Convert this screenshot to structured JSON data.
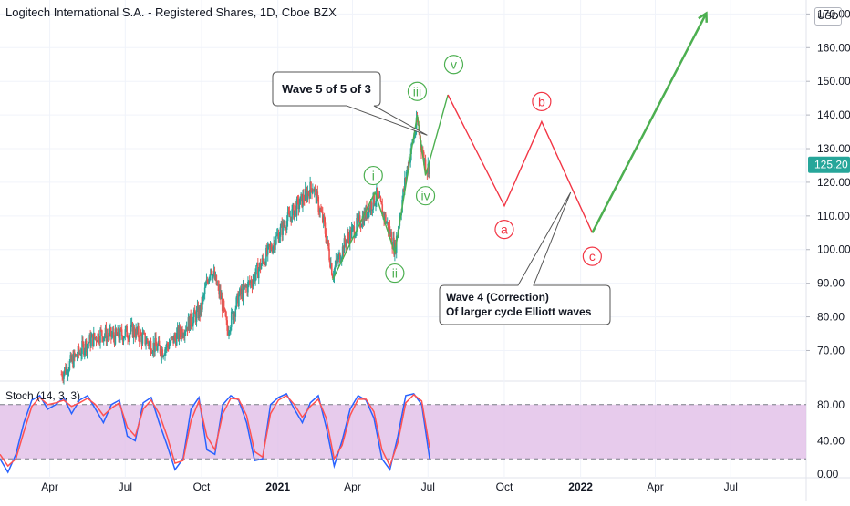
{
  "header": {
    "title": "Logitech International S.A. - Registered Shares, 1D, Cboe BZX",
    "currency": "USD"
  },
  "colors": {
    "up": "#26a69a",
    "down": "#ef5350",
    "wave_green": "#4caf50",
    "wave_red": "#f23645",
    "price_tag": "#26a69a",
    "stoch_k": "#2962ff",
    "stoch_d": "#ff5252",
    "stoch_band": "#e1bee7"
  },
  "chart_data": [
    {
      "type": "candlestick",
      "title": "Logitech International S.A. - Registered Shares, 1D, Cboe BZX",
      "y_axis": {
        "ticks": [
          "70.00",
          "80.00",
          "90.00",
          "100.00",
          "110.00",
          "120.00",
          "130.00",
          "140.00",
          "150.00",
          "160.00",
          "170.00"
        ],
        "range": [
          62,
          172
        ],
        "position": "right"
      },
      "x_axis": {
        "ticks": [
          "Apr",
          "Jul",
          "Oct",
          "2021",
          "Apr",
          "Jul",
          "Oct",
          "2022",
          "Apr",
          "Jul"
        ],
        "range": [
          "2020-02-01",
          "2022-09-30"
        ]
      },
      "last_price": "125.20",
      "price_path": [
        [
          "2020-04-15",
          63
        ],
        [
          "2020-05-15",
          72
        ],
        [
          "2020-06-01",
          75
        ],
        [
          "2020-06-20",
          74
        ],
        [
          "2020-07-10",
          76
        ],
        [
          "2020-07-31",
          72
        ],
        [
          "2020-08-15",
          70
        ],
        [
          "2020-08-31",
          74
        ],
        [
          "2020-09-15",
          78
        ],
        [
          "2020-09-30",
          82
        ],
        [
          "2020-10-12",
          95
        ],
        [
          "2020-10-25",
          85
        ],
        [
          "2020-11-01",
          76
        ],
        [
          "2020-11-15",
          86
        ],
        [
          "2020-12-01",
          91
        ],
        [
          "2020-12-20",
          99
        ],
        [
          "2021-01-10",
          108
        ],
        [
          "2021-01-28",
          114
        ],
        [
          "2021-02-12",
          119
        ],
        [
          "2021-02-25",
          108
        ],
        [
          "2021-03-08",
          93
        ],
        [
          "2021-03-25",
          103
        ],
        [
          "2021-04-15",
          110
        ],
        [
          "2021-04-30",
          116
        ],
        [
          "2021-05-15",
          106
        ],
        [
          "2021-05-22",
          100
        ],
        [
          "2021-06-05",
          123
        ],
        [
          "2021-06-18",
          138
        ],
        [
          "2021-06-25",
          128
        ],
        [
          "2021-06-30",
          124
        ],
        [
          "2021-07-03",
          125.2
        ]
      ],
      "elliott_waves": [
        {
          "name": "impulse",
          "color": "green",
          "points": [
            [
              "2021-03-08",
              91
            ],
            [
              "2021-04-28",
              117
            ],
            [
              "2021-05-22",
              99
            ],
            [
              "2021-06-18",
              140
            ],
            [
              "2021-06-28",
              122
            ],
            [
              "2021-07-25",
              146
            ]
          ]
        },
        {
          "name": "correction",
          "color": "red",
          "points": [
            [
              "2021-07-25",
              146
            ],
            [
              "2021-10-01",
              113
            ],
            [
              "2021-11-15",
              138
            ],
            [
              "2022-01-15",
              105
            ]
          ]
        },
        {
          "name": "projection",
          "color": "green",
          "arrow": true,
          "points": [
            [
              "2022-01-15",
              105
            ],
            [
              "2022-06-01",
              170
            ]
          ]
        }
      ],
      "wave_labels": [
        {
          "text": "i",
          "color": "green",
          "at": [
            "2021-04-26",
            122
          ]
        },
        {
          "text": "ii",
          "color": "green",
          "at": [
            "2021-05-22",
            93
          ]
        },
        {
          "text": "iii",
          "color": "green",
          "at": [
            "2021-06-18",
            147
          ]
        },
        {
          "text": "iv",
          "color": "green",
          "at": [
            "2021-06-28",
            116
          ]
        },
        {
          "text": "v",
          "color": "green",
          "at": [
            "2021-08-01",
            155
          ]
        },
        {
          "text": "a",
          "color": "red",
          "at": [
            "2021-10-01",
            106
          ]
        },
        {
          "text": "b",
          "color": "red",
          "at": [
            "2021-11-15",
            144
          ]
        },
        {
          "text": "c",
          "color": "red",
          "at": [
            "2022-01-15",
            98
          ]
        }
      ],
      "annotations": [
        {
          "id": "callout1",
          "text_lines": [
            "Wave 5 of 5 of 3"
          ],
          "points_to": [
            "2021-06-30",
            134
          ]
        },
        {
          "id": "callout2",
          "text_lines": [
            "Wave 4 (Correction)",
            "Of larger cycle Elliott waves"
          ],
          "points_to": [
            "2021-12-20",
            117
          ]
        }
      ]
    },
    {
      "type": "line",
      "title": "Stoch (14, 3, 3)",
      "y_axis": {
        "ticks": [
          "0.00",
          "40.00",
          "80.00"
        ],
        "range": [
          0,
          100
        ],
        "band": [
          20,
          80
        ]
      },
      "series": [
        {
          "color": "blue",
          "values": [
            20,
            5,
            25,
            60,
            85,
            90,
            75,
            80,
            88,
            70,
            85,
            90,
            75,
            60,
            80,
            85,
            45,
            40,
            82,
            88,
            60,
            35,
            8,
            20,
            75,
            88,
            30,
            25,
            80,
            90,
            85,
            60,
            18,
            20,
            80,
            88,
            92,
            75,
            60,
            82,
            90,
            55,
            12,
            40,
            75,
            90,
            85,
            65,
            20,
            8,
            45,
            90,
            92,
            80,
            20
          ]
        },
        {
          "color": "red",
          "values": [
            25,
            12,
            20,
            50,
            78,
            88,
            80,
            82,
            85,
            78,
            82,
            87,
            80,
            68,
            76,
            82,
            55,
            45,
            75,
            85,
            70,
            45,
            15,
            18,
            62,
            84,
            45,
            30,
            70,
            87,
            86,
            68,
            28,
            22,
            70,
            85,
            90,
            80,
            66,
            78,
            86,
            65,
            20,
            35,
            68,
            86,
            86,
            72,
            30,
            12,
            38,
            82,
            91,
            84,
            32
          ]
        }
      ]
    }
  ],
  "texts": {
    "wave5_callout_line1": "Wave 5 of 5 of 3",
    "wave4_callout_line1": "Wave 4 (Correction)",
    "wave4_callout_line2": "Of larger cycle Elliott waves",
    "stoch_label": "Stoch (14, 3, 3)"
  }
}
